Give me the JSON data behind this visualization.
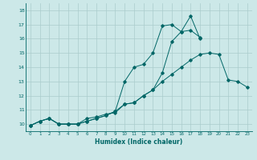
{
  "xlabel": "Humidex (Indice chaleur)",
  "bg_color": "#cce8e8",
  "grid_color": "#aacccc",
  "line_color": "#006666",
  "xlim": [
    -0.5,
    23.5
  ],
  "ylim": [
    9.5,
    18.5
  ],
  "xticks": [
    0,
    1,
    2,
    3,
    4,
    5,
    6,
    7,
    8,
    9,
    10,
    11,
    12,
    13,
    14,
    15,
    16,
    17,
    18,
    19,
    20,
    21,
    22,
    23
  ],
  "yticks": [
    10,
    11,
    12,
    13,
    14,
    15,
    16,
    17,
    18
  ],
  "line1_x": [
    0,
    1,
    2,
    3,
    4,
    5,
    6,
    7,
    8,
    9,
    10,
    11,
    12,
    13,
    14,
    15,
    16,
    17,
    18,
    19,
    20,
    21,
    22,
    23
  ],
  "line1_y": [
    9.9,
    10.2,
    10.4,
    10.0,
    10.0,
    10.0,
    10.4,
    10.5,
    10.7,
    10.8,
    11.4,
    11.5,
    12.0,
    12.4,
    13.0,
    13.5,
    14.0,
    14.5,
    14.9,
    15.0,
    14.9,
    13.1,
    13.0,
    12.6
  ],
  "line2_x": [
    0,
    1,
    2,
    3,
    4,
    5,
    6,
    7,
    8,
    9,
    10,
    11,
    12,
    13,
    14,
    15,
    16,
    17,
    18
  ],
  "line2_y": [
    9.9,
    10.2,
    10.4,
    10.0,
    10.0,
    10.0,
    10.2,
    10.4,
    10.6,
    10.9,
    13.0,
    14.0,
    14.2,
    15.0,
    16.9,
    17.0,
    16.5,
    17.6,
    16.0
  ],
  "line3_x": [
    0,
    1,
    2,
    3,
    4,
    5,
    6,
    7,
    8,
    9,
    10,
    11,
    12,
    13,
    14,
    15,
    16,
    17,
    18
  ],
  "line3_y": [
    9.9,
    10.2,
    10.4,
    10.0,
    10.0,
    10.0,
    10.2,
    10.4,
    10.6,
    10.9,
    11.4,
    11.5,
    12.0,
    12.4,
    13.6,
    15.8,
    16.5,
    16.6,
    16.1
  ]
}
